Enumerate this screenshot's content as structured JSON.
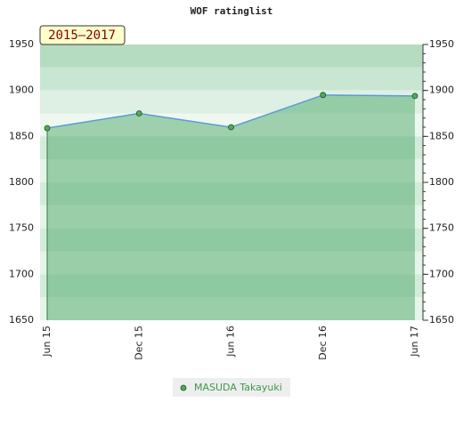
{
  "chart_data": {
    "type": "line",
    "title": "WOF ratinglist",
    "annotation": "2015–2017",
    "categories": [
      "Jun 15",
      "Dec 15",
      "Jun 16",
      "Dec 16",
      "Jun 17"
    ],
    "series": [
      {
        "name": "MASUDA Takayuki",
        "color": "#4caf50",
        "values": [
          1859,
          1875,
          1860,
          1895,
          1894
        ]
      }
    ],
    "ylim": [
      1650,
      1950
    ],
    "yticks": [
      1650,
      1700,
      1750,
      1800,
      1850,
      1900,
      1950
    ],
    "grid": false
  }
}
